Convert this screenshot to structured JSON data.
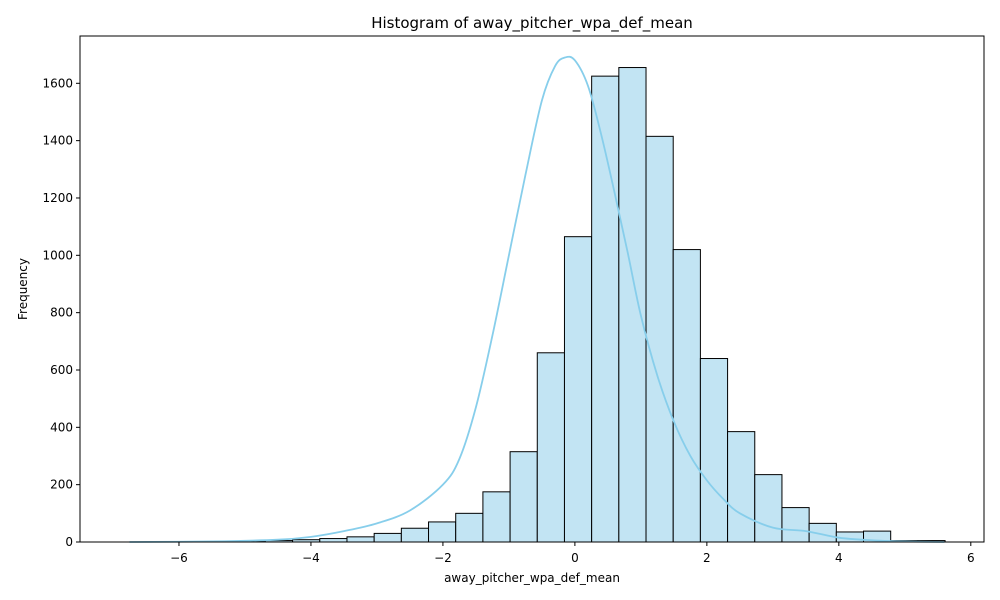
{
  "chart_data": {
    "type": "histogram",
    "title": "Histogram of away_pitcher_wpa_def_mean",
    "xlabel": "away_pitcher_wpa_def_mean",
    "ylabel": "Frequency",
    "xlim": [
      -7.5,
      6.2
    ],
    "ylim": [
      0,
      1765
    ],
    "xticks": [
      -6,
      -4,
      -2,
      0,
      2,
      4,
      6
    ],
    "xtick_labels": [
      "−6",
      "−4",
      "−2",
      "0",
      "2",
      "4",
      "6"
    ],
    "yticks": [
      0,
      200,
      400,
      600,
      800,
      1000,
      1200,
      1400,
      1600
    ],
    "ytick_labels": [
      "0",
      "200",
      "400",
      "600",
      "800",
      "1000",
      "1200",
      "1400",
      "1600"
    ],
    "bin_start": -6.75,
    "bin_width": 0.412,
    "counts": [
      0,
      0,
      0,
      2,
      3,
      5,
      8,
      12,
      18,
      30,
      48,
      70,
      100,
      175,
      315,
      660,
      1065,
      1625,
      1655,
      1415,
      1020,
      640,
      385,
      235,
      120,
      65,
      35,
      38,
      5,
      5
    ],
    "kde": {
      "x": [
        -6.75,
        -5.5,
        -4.5,
        -4.0,
        -3.5,
        -3.0,
        -2.5,
        -2.0,
        -1.75,
        -1.5,
        -1.25,
        -1.0,
        -0.75,
        -0.5,
        -0.3,
        -0.15,
        0.0,
        0.2,
        0.4,
        0.6,
        0.8,
        1.0,
        1.25,
        1.5,
        1.75,
        2.0,
        2.25,
        2.5,
        3.0,
        3.5,
        4.0,
        4.5,
        5.0,
        5.6
      ],
      "y": [
        0,
        2,
        8,
        18,
        38,
        65,
        110,
        200,
        290,
        470,
        720,
        1000,
        1280,
        1540,
        1660,
        1690,
        1680,
        1590,
        1420,
        1220,
        1010,
        790,
        580,
        420,
        300,
        215,
        150,
        100,
        50,
        38,
        15,
        6,
        2,
        0
      ]
    },
    "colors": {
      "bar_fill": "#c2e4f3",
      "bar_edge": "#000000",
      "kde_line": "#87ceeb"
    },
    "grid": false,
    "legend": "none"
  }
}
